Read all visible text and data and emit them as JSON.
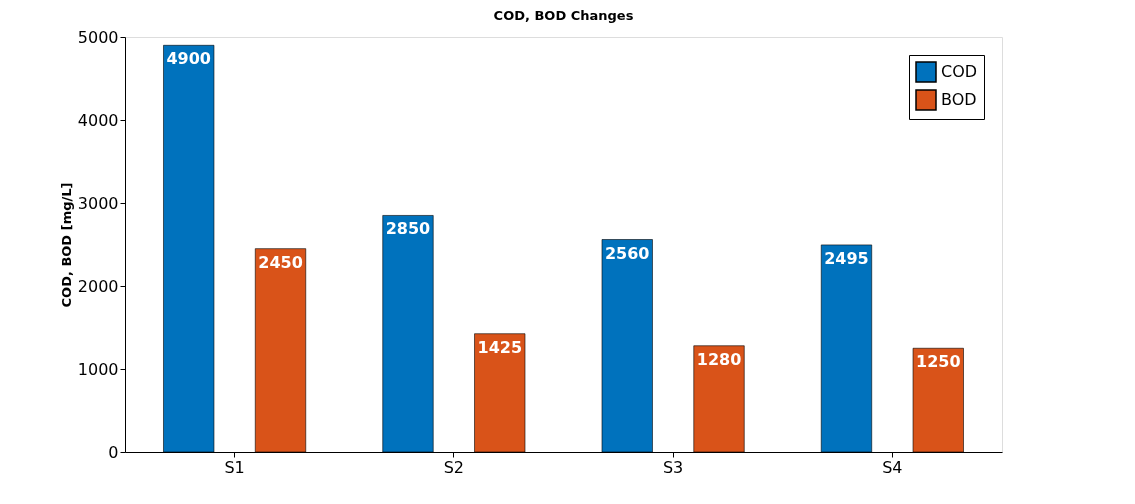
{
  "chart_data": {
    "type": "bar",
    "title": "COD, BOD Changes",
    "ylabel": "COD, BOD  [mg/L]",
    "categories": [
      "S1",
      "S2",
      "S3",
      "S4"
    ],
    "series": [
      {
        "name": "COD",
        "color": "#0072bd",
        "values": [
          4900,
          2850,
          2560,
          2495
        ]
      },
      {
        "name": "BOD",
        "color": "#d95319",
        "values": [
          2450,
          1425,
          1280,
          1250
        ]
      }
    ],
    "ylim": [
      0,
      5000
    ],
    "yticks": [
      0,
      1000,
      2000,
      3000,
      4000,
      5000
    ],
    "data_labels": true,
    "legend": "top right",
    "grid": false
  }
}
